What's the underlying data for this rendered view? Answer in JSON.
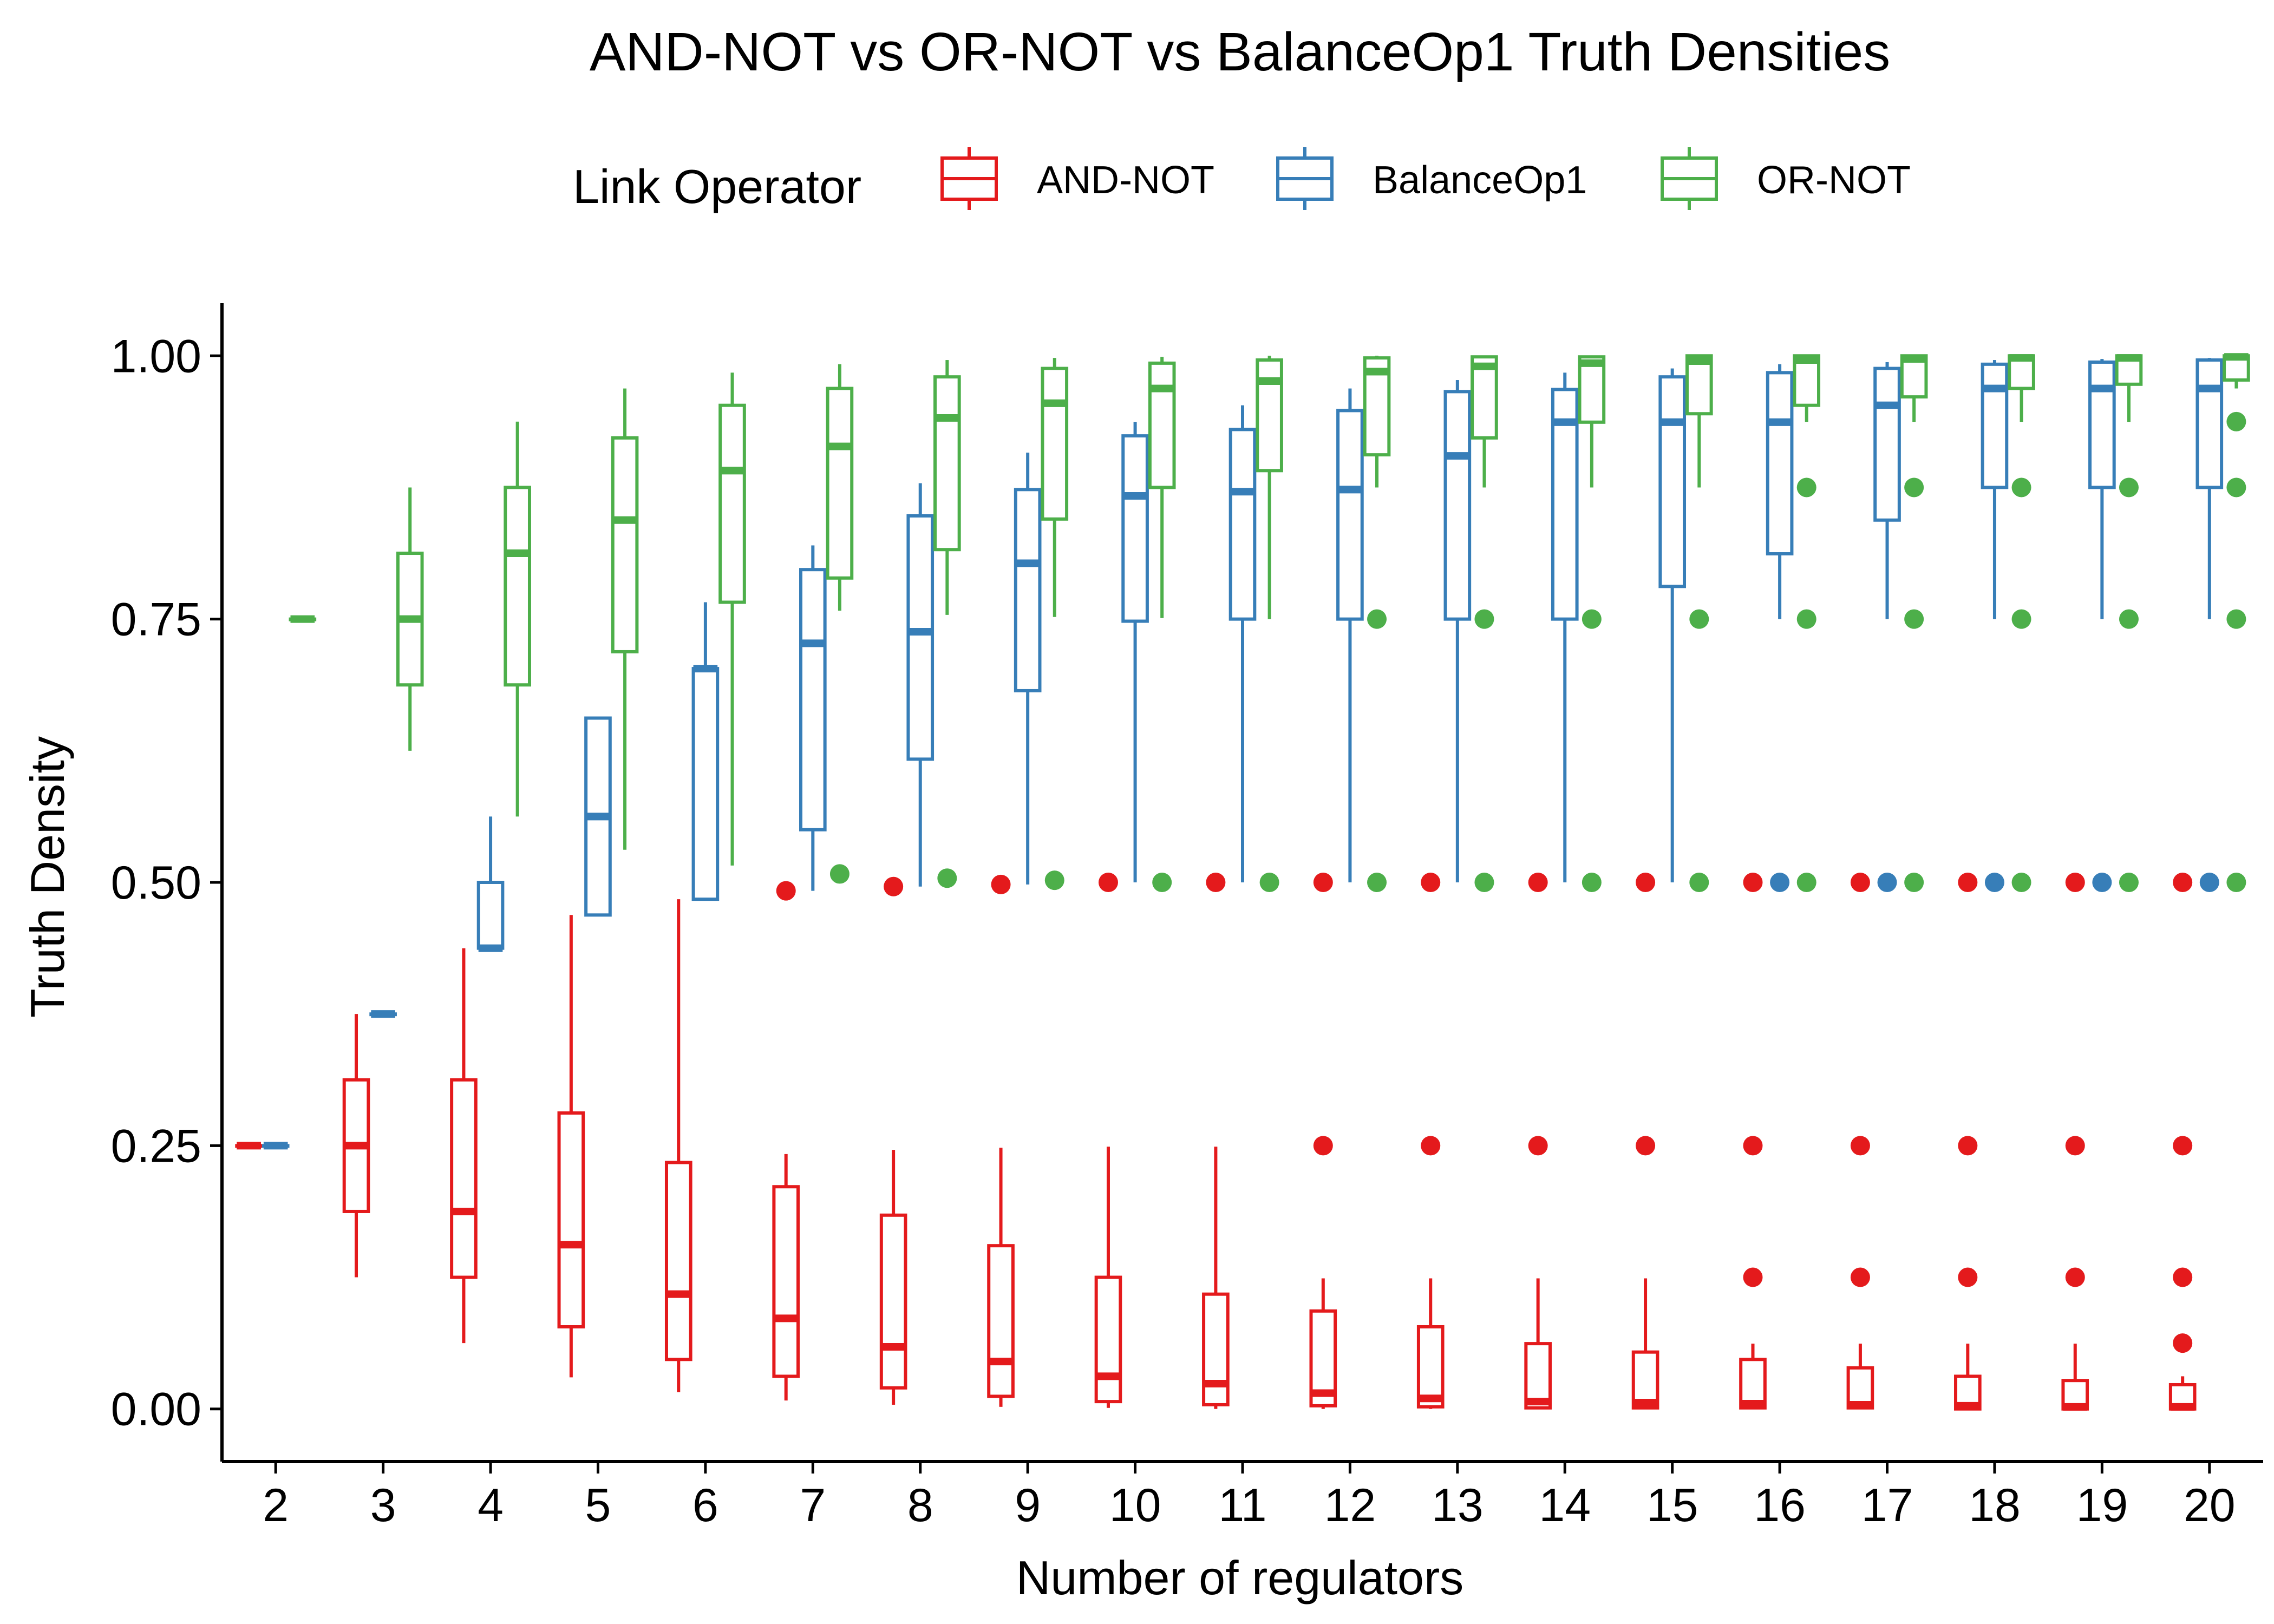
{
  "chart_data": {
    "type": "box",
    "title": "AND-NOT vs OR-NOT vs BalanceOp1 Truth Densities",
    "xlabel": "Number of regulators",
    "ylabel": "Truth Density",
    "ylim": [
      -0.05,
      1.05
    ],
    "yticks": [
      0.0,
      0.25,
      0.5,
      0.75,
      1.0
    ],
    "ytick_labels": [
      "0.00",
      "0.25",
      "0.50",
      "0.75",
      "1.00"
    ],
    "categories": [
      "2",
      "3",
      "4",
      "5",
      "6",
      "7",
      "8",
      "9",
      "10",
      "11",
      "12",
      "13",
      "14",
      "15",
      "16",
      "17",
      "18",
      "19",
      "20"
    ],
    "grid": false,
    "legend": {
      "title": "Link Operator",
      "position": "top",
      "entries": [
        "AND-NOT",
        "BalanceOp1",
        "OR-NOT"
      ]
    },
    "series": [
      {
        "name": "AND-NOT",
        "color": "#E41A1C",
        "boxes": [
          {
            "low": 0.25,
            "q1": 0.25,
            "median": 0.25,
            "q3": 0.25,
            "high": 0.25,
            "outliers": []
          },
          {
            "low": 0.125,
            "q1": 0.1875,
            "median": 0.25,
            "q3": 0.3125,
            "high": 0.375,
            "outliers": []
          },
          {
            "low": 0.0625,
            "q1": 0.125,
            "median": 0.1875,
            "q3": 0.3125,
            "high": 0.4375,
            "outliers": []
          },
          {
            "low": 0.03,
            "q1": 0.078,
            "median": 0.156,
            "q3": 0.281,
            "high": 0.469,
            "outliers": []
          },
          {
            "low": 0.016,
            "q1": 0.047,
            "median": 0.109,
            "q3": 0.234,
            "high": 0.484,
            "outliers": []
          },
          {
            "low": 0.008,
            "q1": 0.031,
            "median": 0.086,
            "q3": 0.211,
            "high": 0.242,
            "outliers": [
              0.492
            ]
          },
          {
            "low": 0.004,
            "q1": 0.02,
            "median": 0.059,
            "q3": 0.184,
            "high": 0.246,
            "outliers": [
              0.496
            ]
          },
          {
            "low": 0.002,
            "q1": 0.012,
            "median": 0.045,
            "q3": 0.155,
            "high": 0.248,
            "outliers": [
              0.498
            ]
          },
          {
            "low": 0.001,
            "q1": 0.007,
            "median": 0.031,
            "q3": 0.125,
            "high": 0.249,
            "outliers": [
              0.5
            ]
          },
          {
            "low": 0.0,
            "q1": 0.004,
            "median": 0.024,
            "q3": 0.109,
            "high": 0.249,
            "outliers": [
              0.5
            ]
          },
          {
            "low": 0.0,
            "q1": 0.003,
            "median": 0.015,
            "q3": 0.093,
            "high": 0.124,
            "outliers": [
              0.25,
              0.5
            ]
          },
          {
            "low": 0.0,
            "q1": 0.002,
            "median": 0.01,
            "q3": 0.078,
            "high": 0.124,
            "outliers": [
              0.25,
              0.5
            ]
          },
          {
            "low": 0.0,
            "q1": 0.001,
            "median": 0.007,
            "q3": 0.062,
            "high": 0.124,
            "outliers": [
              0.25,
              0.5
            ]
          },
          {
            "low": 0.0,
            "q1": 0.001,
            "median": 0.006,
            "q3": 0.054,
            "high": 0.124,
            "outliers": [
              0.25,
              0.5
            ]
          },
          {
            "low": 0.0,
            "q1": 0.001,
            "median": 0.005,
            "q3": 0.047,
            "high": 0.062,
            "outliers": [
              0.125,
              0.25,
              0.5
            ]
          },
          {
            "low": 0.0,
            "q1": 0.001,
            "median": 0.004,
            "q3": 0.039,
            "high": 0.062,
            "outliers": [
              0.125,
              0.25,
              0.5
            ]
          },
          {
            "low": 0.0,
            "q1": 0.0,
            "median": 0.003,
            "q3": 0.031,
            "high": 0.062,
            "outliers": [
              0.125,
              0.25,
              0.5
            ]
          },
          {
            "low": 0.0,
            "q1": 0.0,
            "median": 0.002,
            "q3": 0.027,
            "high": 0.062,
            "outliers": [
              0.125,
              0.25,
              0.5
            ]
          },
          {
            "low": 0.0,
            "q1": 0.0,
            "median": 0.002,
            "q3": 0.023,
            "high": 0.031,
            "outliers": [
              0.0625,
              0.125,
              0.25,
              0.5
            ]
          }
        ]
      },
      {
        "name": "BalanceOp1",
        "color": "#377EB8",
        "boxes": [
          {
            "low": 0.25,
            "q1": 0.25,
            "median": 0.25,
            "q3": 0.25,
            "high": 0.25,
            "outliers": []
          },
          {
            "low": 0.375,
            "q1": 0.375,
            "median": 0.375,
            "q3": 0.375,
            "high": 0.375,
            "outliers": []
          },
          {
            "low": 0.4375,
            "q1": 0.4375,
            "median": 0.4375,
            "q3": 0.5,
            "high": 0.5625,
            "outliers": []
          },
          {
            "low": 0.469,
            "q1": 0.469,
            "median": 0.5625,
            "q3": 0.656,
            "high": 0.656,
            "outliers": []
          },
          {
            "low": 0.484,
            "q1": 0.484,
            "median": 0.703,
            "q3": 0.703,
            "high": 0.766,
            "outliers": []
          },
          {
            "low": 0.492,
            "q1": 0.55,
            "median": 0.727,
            "q3": 0.797,
            "high": 0.82,
            "outliers": []
          },
          {
            "low": 0.496,
            "q1": 0.617,
            "median": 0.738,
            "q3": 0.848,
            "high": 0.879,
            "outliers": []
          },
          {
            "low": 0.498,
            "q1": 0.682,
            "median": 0.803,
            "q3": 0.873,
            "high": 0.908,
            "outliers": []
          },
          {
            "low": 0.5,
            "q1": 0.748,
            "median": 0.867,
            "q3": 0.924,
            "high": 0.937,
            "outliers": []
          },
          {
            "low": 0.5,
            "q1": 0.75,
            "median": 0.871,
            "q3": 0.93,
            "high": 0.953,
            "outliers": []
          },
          {
            "low": 0.5,
            "q1": 0.75,
            "median": 0.873,
            "q3": 0.948,
            "high": 0.969,
            "outliers": []
          },
          {
            "low": 0.5,
            "q1": 0.75,
            "median": 0.905,
            "q3": 0.966,
            "high": 0.977,
            "outliers": []
          },
          {
            "low": 0.5,
            "q1": 0.75,
            "median": 0.937,
            "q3": 0.968,
            "high": 0.984,
            "outliers": []
          },
          {
            "low": 0.5,
            "q1": 0.781,
            "median": 0.937,
            "q3": 0.98,
            "high": 0.988,
            "outliers": []
          },
          {
            "low": 0.75,
            "q1": 0.812,
            "median": 0.937,
            "q3": 0.984,
            "high": 0.992,
            "outliers": [
              0.5
            ]
          },
          {
            "low": 0.75,
            "q1": 0.844,
            "median": 0.953,
            "q3": 0.988,
            "high": 0.994,
            "outliers": [
              0.5
            ]
          },
          {
            "low": 0.75,
            "q1": 0.875,
            "median": 0.969,
            "q3": 0.992,
            "high": 0.996,
            "outliers": [
              0.5
            ]
          },
          {
            "low": 0.75,
            "q1": 0.875,
            "median": 0.969,
            "q3": 0.994,
            "high": 0.997,
            "outliers": [
              0.5
            ]
          },
          {
            "low": 0.75,
            "q1": 0.875,
            "median": 0.969,
            "q3": 0.996,
            "high": 0.998,
            "outliers": [
              0.5
            ]
          }
        ]
      },
      {
        "name": "OR-NOT",
        "color": "#4DAF4A",
        "boxes": [
          {
            "low": 0.75,
            "q1": 0.75,
            "median": 0.75,
            "q3": 0.75,
            "high": 0.75,
            "outliers": []
          },
          {
            "low": 0.625,
            "q1": 0.6875,
            "median": 0.75,
            "q3": 0.8125,
            "high": 0.875,
            "outliers": []
          },
          {
            "low": 0.5625,
            "q1": 0.6875,
            "median": 0.8125,
            "q3": 0.875,
            "high": 0.9375,
            "outliers": []
          },
          {
            "low": 0.531,
            "q1": 0.719,
            "median": 0.844,
            "q3": 0.922,
            "high": 0.969,
            "outliers": []
          },
          {
            "low": 0.516,
            "q1": 0.766,
            "median": 0.891,
            "q3": 0.953,
            "high": 0.984,
            "outliers": []
          },
          {
            "low": 0.758,
            "q1": 0.789,
            "median": 0.914,
            "q3": 0.969,
            "high": 0.992,
            "outliers": [
              0.508
            ]
          },
          {
            "low": 0.754,
            "q1": 0.816,
            "median": 0.941,
            "q3": 0.98,
            "high": 0.996,
            "outliers": [
              0.504
            ]
          },
          {
            "low": 0.752,
            "q1": 0.845,
            "median": 0.955,
            "q3": 0.988,
            "high": 0.998,
            "outliers": [
              0.502
            ]
          },
          {
            "low": 0.751,
            "q1": 0.875,
            "median": 0.969,
            "q3": 0.993,
            "high": 0.999,
            "outliers": [
              0.5
            ]
          },
          {
            "low": 0.75,
            "q1": 0.891,
            "median": 0.976,
            "q3": 0.996,
            "high": 1.0,
            "outliers": [
              0.5
            ]
          },
          {
            "low": 0.875,
            "q1": 0.906,
            "median": 0.985,
            "q3": 0.998,
            "high": 1.0,
            "outliers": [
              0.5,
              0.75
            ]
          },
          {
            "low": 0.875,
            "q1": 0.922,
            "median": 0.99,
            "q3": 0.999,
            "high": 1.0,
            "outliers": [
              0.5,
              0.75
            ]
          },
          {
            "low": 0.875,
            "q1": 0.937,
            "median": 0.993,
            "q3": 0.999,
            "high": 1.0,
            "outliers": [
              0.5,
              0.75
            ]
          },
          {
            "low": 0.875,
            "q1": 0.945,
            "median": 0.995,
            "q3": 1.0,
            "high": 1.0,
            "outliers": [
              0.5,
              0.75
            ]
          },
          {
            "low": 0.937,
            "q1": 0.953,
            "median": 0.996,
            "q3": 1.0,
            "high": 1.0,
            "outliers": [
              0.5,
              0.75,
              0.875
            ]
          },
          {
            "low": 0.937,
            "q1": 0.961,
            "median": 0.997,
            "q3": 1.0,
            "high": 1.0,
            "outliers": [
              0.5,
              0.75,
              0.875
            ]
          },
          {
            "low": 0.937,
            "q1": 0.969,
            "median": 0.998,
            "q3": 1.0,
            "high": 1.0,
            "outliers": [
              0.5,
              0.75,
              0.875
            ]
          },
          {
            "low": 0.937,
            "q1": 0.973,
            "median": 0.998,
            "q3": 1.0,
            "high": 1.0,
            "outliers": [
              0.5,
              0.75,
              0.875
            ]
          },
          {
            "low": 0.969,
            "q1": 0.977,
            "median": 0.999,
            "q3": 1.0,
            "high": 1.0,
            "outliers": [
              0.5,
              0.75,
              0.875,
              0.9375
            ]
          }
        ]
      }
    ]
  }
}
